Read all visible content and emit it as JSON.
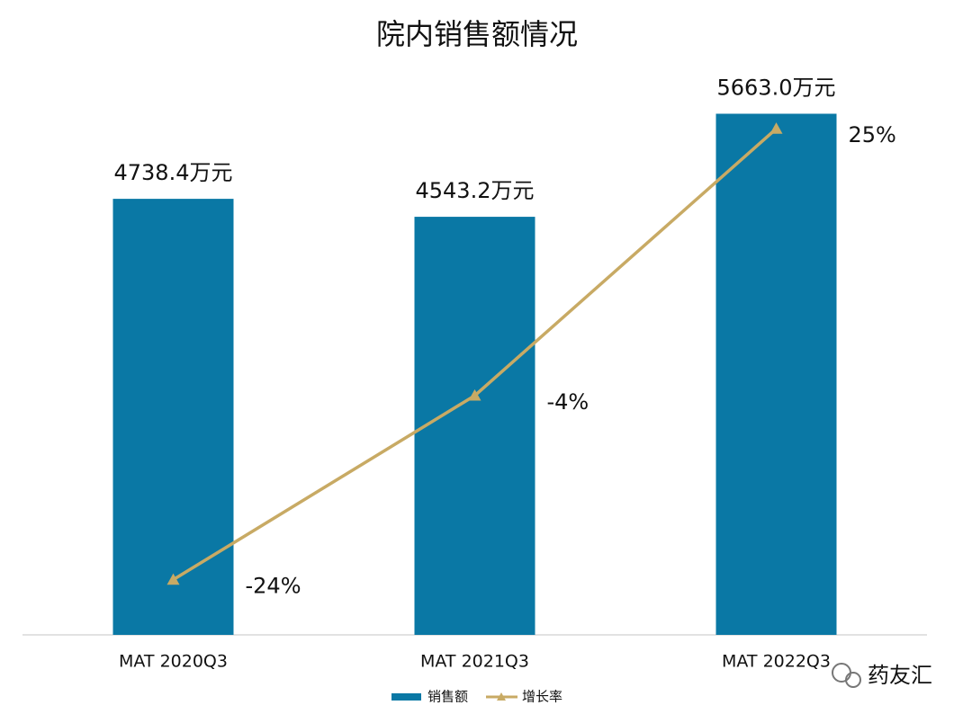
{
  "chart_data": {
    "type": "bar-line",
    "title": "院内销售额情况",
    "categories": [
      "MAT 2020Q3",
      "MAT 2021Q3",
      "MAT 2022Q3"
    ],
    "series": [
      {
        "name": "销售额",
        "type": "bar",
        "color": "#0a78a5",
        "values": [
          4738.4,
          4543.2,
          5663.0
        ],
        "value_labels": [
          "4738.4万元",
          "4543.2万元",
          "5663.0万元"
        ]
      },
      {
        "name": "增长率",
        "type": "line",
        "axis": "y2",
        "color": "#c8aa64",
        "values": [
          -24,
          -4,
          25
        ],
        "value_labels": [
          "-24%",
          "-4%",
          "25%"
        ]
      }
    ],
    "ylim": [
      0,
      6000
    ],
    "y2lim": [
      -30,
      30
    ],
    "legend": "bottom"
  },
  "watermark": "药友汇"
}
